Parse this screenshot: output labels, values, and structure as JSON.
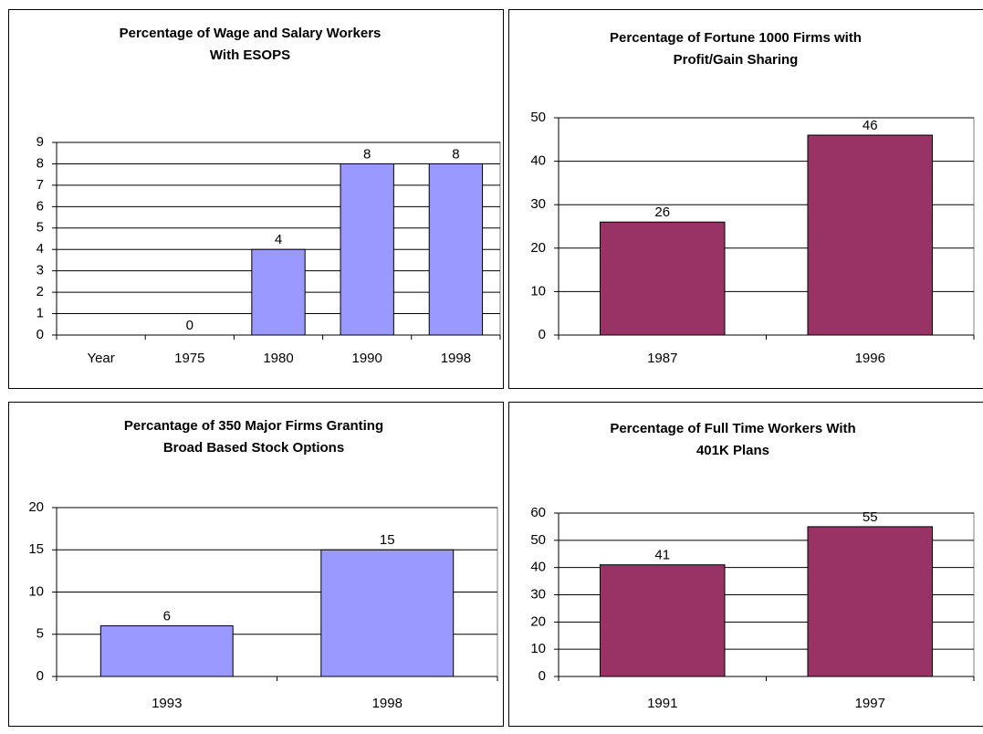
{
  "chart_data": [
    {
      "type": "bar",
      "title": [
        "Percentage of Wage and Salary Workers",
        "With ESOPS"
      ],
      "categories": [
        "Year",
        "1975",
        "1980",
        "1990",
        "1998"
      ],
      "values": [
        null,
        0,
        4,
        8,
        8
      ],
      "color": "#9999ff",
      "ylim": [
        0,
        9
      ],
      "yticks": [
        0,
        1,
        2,
        3,
        4,
        5,
        6,
        7,
        8,
        9
      ],
      "grid": true
    },
    {
      "type": "bar",
      "title": [
        "Percentage of Fortune 1000 Firms with",
        "Profit/Gain Sharing"
      ],
      "categories": [
        "1987",
        "1996"
      ],
      "values": [
        26,
        46
      ],
      "color": "#993366",
      "ylim": [
        0,
        50
      ],
      "yticks": [
        0,
        10,
        20,
        30,
        40,
        50
      ],
      "grid": true
    },
    {
      "type": "bar",
      "title": [
        "Percantage of 350 Major Firms Granting",
        "Broad Based Stock Options"
      ],
      "categories": [
        "1993",
        "1998"
      ],
      "values": [
        6,
        15
      ],
      "color": "#9999ff",
      "ylim": [
        0,
        20
      ],
      "yticks": [
        0,
        5,
        10,
        15,
        20
      ],
      "grid": true
    },
    {
      "type": "bar",
      "title": [
        "Percentage of Full Time Workers With",
        "401K Plans"
      ],
      "categories": [
        "1991",
        "1997"
      ],
      "values": [
        41,
        55
      ],
      "color": "#993366",
      "ylim": [
        0,
        60
      ],
      "yticks": [
        0,
        10,
        20,
        30,
        40,
        50,
        60
      ],
      "grid": true
    }
  ]
}
